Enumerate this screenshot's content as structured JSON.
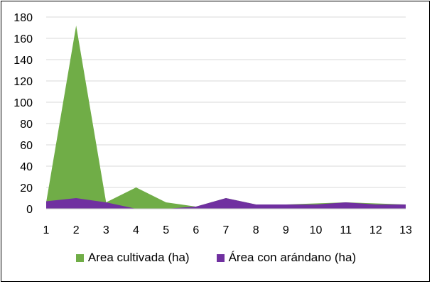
{
  "chart_data": {
    "type": "area",
    "x": [
      1,
      2,
      3,
      4,
      5,
      6,
      7,
      8,
      9,
      10,
      11,
      12,
      13
    ],
    "xlim": [
      1,
      13
    ],
    "ylim": [
      0,
      180
    ],
    "y_ticks": [
      0,
      20,
      40,
      60,
      80,
      100,
      120,
      140,
      160,
      180
    ],
    "grid": "horizontal",
    "legend_position": "bottom",
    "series": [
      {
        "name": "Area cultivada (ha)",
        "color": "#70AD47",
        "values": [
          6,
          172,
          6,
          20,
          6,
          2,
          10,
          4,
          4,
          5,
          6,
          5,
          4
        ]
      },
      {
        "name": "Área con arándano (ha)",
        "color": "#7030A0",
        "values": [
          7,
          10,
          6,
          0,
          0,
          2,
          10,
          4,
          4,
          4,
          6,
          4,
          4
        ]
      }
    ]
  }
}
